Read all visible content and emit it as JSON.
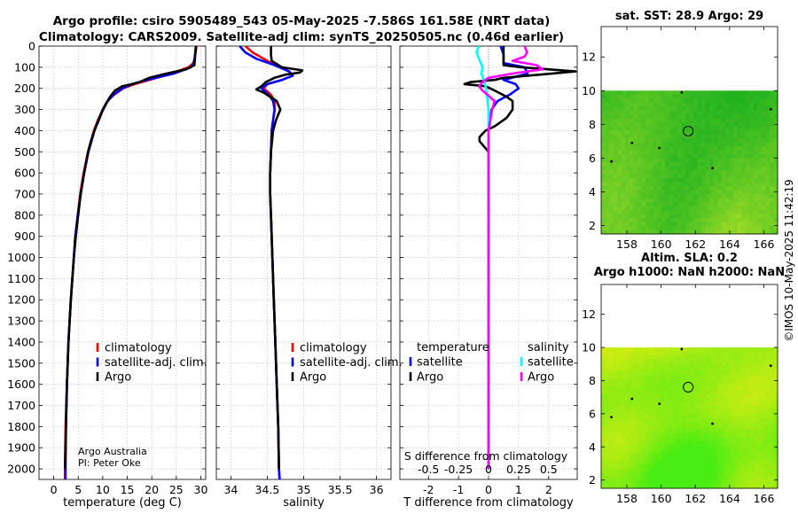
{
  "title": {
    "line1": "Argo profile: csiro 5905489_543 05-May-2025 -7.586S 161.58E (NRT data)",
    "line2": "Climatology: CARS2009. Satellite-adj clim: synTS_20250505.nc (0.46d earlier)"
  },
  "colors": {
    "climatology": "#ff0000",
    "satellite": "#0000ff",
    "argo": "#000000",
    "sal_sat": "#00ffff",
    "sal_argo": "#ff00ff",
    "grid": "#bbbbbb",
    "zero_line": "#888888"
  },
  "depth_axis": {
    "min": 0,
    "max": 2050,
    "ticks": [
      0,
      100,
      200,
      300,
      400,
      500,
      600,
      700,
      800,
      900,
      1000,
      1100,
      1200,
      1300,
      1400,
      1500,
      1600,
      1700,
      1800,
      1900,
      2000
    ]
  },
  "chart_data": [
    {
      "type": "line",
      "name": "temperature profile",
      "xlabel": "temperature (deg C)",
      "xlim": [
        -3,
        31
      ],
      "ylim": [
        2050,
        0
      ],
      "xticks": [
        0,
        5,
        10,
        15,
        20,
        25,
        30
      ],
      "legend": [
        "climatology",
        "satellite-adj. clim.",
        "Argo"
      ],
      "legend_position": "bottom-right",
      "annotation": [
        "Argo Australia",
        "PI: Peter Oke"
      ],
      "series": [
        {
          "name": "climatology",
          "color_key": "climatology",
          "depth": [
            0,
            20,
            50,
            80,
            100,
            130,
            160,
            180,
            200,
            230,
            260,
            300,
            350,
            400,
            500,
            600,
            700,
            800,
            900,
            1000,
            1200,
            1400,
            1600,
            1800,
            2000,
            2050
          ],
          "values": [
            29.1,
            29.0,
            28.8,
            28.5,
            27.5,
            24.0,
            19.5,
            16.5,
            14.2,
            12.3,
            11.0,
            10.0,
            9.0,
            8.2,
            7.0,
            6.1,
            5.4,
            4.9,
            4.4,
            4.1,
            3.5,
            3.0,
            2.7,
            2.4,
            2.3,
            2.3
          ]
        },
        {
          "name": "satellite-adj. clim.",
          "color_key": "satellite",
          "depth": [
            0,
            20,
            50,
            80,
            100,
            130,
            160,
            180,
            200,
            230,
            260,
            300,
            350,
            400,
            500,
            600,
            700,
            800,
            900,
            1000,
            1200,
            1400,
            1600,
            1800,
            2000,
            2050
          ],
          "values": [
            29.0,
            28.9,
            28.8,
            28.6,
            28.0,
            24.5,
            19.0,
            16.0,
            14.0,
            12.2,
            11.0,
            10.1,
            9.1,
            8.3,
            7.1,
            6.2,
            5.5,
            4.9,
            4.4,
            4.1,
            3.5,
            3.0,
            2.7,
            2.5,
            2.4,
            2.4
          ]
        },
        {
          "name": "Argo",
          "color_key": "argo",
          "depth": [
            0,
            10,
            30,
            60,
            90,
            110,
            130,
            150,
            170,
            180,
            190,
            210,
            240,
            270,
            300,
            350,
            400,
            450,
            500,
            600,
            700,
            800,
            900,
            1000,
            1200,
            1400,
            1600,
            1800,
            2000
          ],
          "values": [
            29.0,
            29.0,
            28.9,
            28.8,
            28.7,
            27.0,
            23.0,
            19.5,
            17.5,
            16.0,
            14.0,
            12.5,
            11.5,
            10.7,
            10.0,
            9.2,
            8.3,
            7.6,
            7.0,
            6.2,
            5.5,
            5.0,
            4.5,
            4.1,
            3.5,
            3.0,
            2.7,
            2.5,
            2.3
          ]
        }
      ]
    },
    {
      "type": "line",
      "name": "salinity profile",
      "xlabel": "salinity",
      "xlim": [
        33.8,
        36.2
      ],
      "ylim": [
        2050,
        0
      ],
      "xticks": [
        34,
        34.5,
        35,
        35.5,
        36
      ],
      "xticklabels": [
        "34",
        "34.5",
        "35",
        "35.5",
        "36"
      ],
      "legend": [
        "climatology",
        "satellite-adj. clim.",
        "Argo"
      ],
      "legend_position": "bottom-right",
      "series": [
        {
          "name": "climatology",
          "color_key": "climatology",
          "depth": [
            0,
            30,
            60,
            90,
            120,
            140,
            160,
            180,
            200,
            230,
            260,
            300,
            350,
            400,
            500,
            600,
            700,
            800,
            1000,
            1200,
            1400,
            1600,
            1800,
            2000,
            2050
          ],
          "values": [
            34.2,
            34.3,
            34.45,
            34.6,
            34.8,
            34.85,
            34.7,
            34.5,
            34.45,
            34.55,
            34.6,
            34.6,
            34.58,
            34.56,
            34.55,
            34.54,
            34.54,
            34.55,
            34.57,
            34.59,
            34.61,
            34.63,
            34.65,
            34.66,
            34.67
          ]
        },
        {
          "name": "satellite-adj. clim.",
          "color_key": "satellite",
          "depth": [
            0,
            30,
            60,
            90,
            120,
            140,
            160,
            180,
            200,
            230,
            260,
            300,
            350,
            400,
            500,
            600,
            700,
            800,
            1000,
            1200,
            1400,
            1600,
            1800,
            2000,
            2050
          ],
          "values": [
            34.12,
            34.2,
            34.35,
            34.6,
            34.8,
            34.85,
            34.7,
            34.5,
            34.42,
            34.52,
            34.58,
            34.6,
            34.58,
            34.56,
            34.55,
            34.54,
            34.54,
            34.55,
            34.57,
            34.59,
            34.61,
            34.63,
            34.65,
            34.66,
            34.67
          ]
        },
        {
          "name": "Argo",
          "color_key": "argo",
          "depth": [
            0,
            40,
            70,
            100,
            115,
            125,
            135,
            150,
            170,
            190,
            205,
            220,
            260,
            300,
            350,
            400,
            500,
            600,
            700,
            800,
            1000,
            1200,
            1400,
            1600,
            1800,
            2000
          ],
          "values": [
            34.55,
            34.55,
            34.56,
            34.7,
            34.98,
            34.95,
            34.75,
            34.6,
            34.48,
            34.42,
            34.35,
            34.45,
            34.63,
            34.68,
            34.62,
            34.58,
            34.55,
            34.54,
            34.54,
            34.55,
            34.57,
            34.59,
            34.61,
            34.63,
            34.65,
            34.66
          ]
        }
      ]
    },
    {
      "type": "line",
      "name": "difference from climatology",
      "xlabel": "T difference from climatology",
      "xlim": [
        -2.95,
        2.95
      ],
      "ylim": [
        2050,
        0
      ],
      "xticks": [
        -2,
        -1,
        0,
        1,
        2
      ],
      "salinity_axis_label": "S difference from climatology",
      "salinity_ticklabels": [
        "-0.5",
        "-0.25",
        "0",
        "0.25",
        "0.5"
      ],
      "salinity_scale": 4,
      "legend_temperature": {
        "heading": "temperature",
        "items": [
          "satellite",
          "Argo"
        ]
      },
      "legend_salinity": {
        "heading": "salinity",
        "items": [
          "satellite",
          "Argo"
        ]
      },
      "series": [
        {
          "name": "T satellite",
          "color_key": "satellite",
          "depth": [
            0,
            40,
            80,
            100,
            130,
            160,
            180,
            200,
            230,
            260,
            300,
            400,
            500,
            600,
            800,
            1000,
            1500,
            2000
          ],
          "values": [
            0.4,
            0.5,
            0.5,
            1.2,
            1.3,
            0.5,
            0.9,
            1.0,
            0.7,
            0.3,
            0.1,
            0.0,
            0.0,
            0.0,
            0.0,
            0.0,
            0.0,
            0.0
          ]
        },
        {
          "name": "T Argo",
          "color_key": "argo",
          "depth": [
            0,
            50,
            90,
            100,
            120,
            150,
            160,
            170,
            180,
            190,
            210,
            240,
            260,
            300,
            340,
            380,
            400,
            430,
            450,
            500,
            600,
            700,
            800,
            1000,
            1500,
            2000
          ],
          "values": [
            0.5,
            0.5,
            0.5,
            1.1,
            2.9,
            0.5,
            0.2,
            -0.6,
            -0.8,
            -0.1,
            0.2,
            0.6,
            0.8,
            0.8,
            0.6,
            0.2,
            -0.1,
            -0.3,
            -0.3,
            0.0,
            0.0,
            0.0,
            0.0,
            0.0,
            0.0,
            0.0
          ]
        },
        {
          "name": "S satellite",
          "color_key": "sal_sat",
          "depth": [
            0,
            30,
            60,
            100,
            130,
            160,
            200,
            250,
            300,
            400,
            500,
            600,
            800,
            1000,
            1200,
            1500,
            2000
          ],
          "values": [
            -0.08,
            -0.1,
            -0.08,
            -0.05,
            -0.06,
            -0.04,
            -0.02,
            -0.01,
            0.0,
            0.0,
            0.0,
            0.0,
            0.0,
            0.0,
            0.0,
            0.0,
            0.0
          ]
        },
        {
          "name": "S Argo",
          "color_key": "sal_argo",
          "depth": [
            0,
            30,
            50,
            70,
            90,
            110,
            130,
            150,
            170,
            190,
            210,
            260,
            300,
            400,
            500,
            600,
            800,
            1000,
            1200,
            1500,
            2000
          ],
          "values": [
            0.3,
            0.32,
            0.3,
            0.2,
            0.4,
            0.45,
            0.2,
            0.0,
            -0.05,
            -0.08,
            -0.05,
            0.05,
            0.03,
            0.0,
            0.0,
            0.0,
            0.0,
            0.0,
            0.0,
            0.0,
            0.0
          ]
        }
      ]
    }
  ],
  "maps": [
    {
      "title_lines": [
        "sat. SST: 28.9 Argo: 29"
      ],
      "x_ticks": [
        158,
        160,
        162,
        164,
        166
      ],
      "y_ticks": [
        2,
        4,
        6,
        8,
        10,
        12
      ],
      "xlim": [
        156.5,
        166.8
      ],
      "ylim": [
        1.5,
        13.8
      ],
      "data_top_lat": 10,
      "float_position": {
        "lon": 161.58,
        "lat": 7.6
      },
      "palette": "green"
    },
    {
      "title_lines": [
        "Altim. SLA: 0.2",
        "Argo h1000: NaN h2000: NaN"
      ],
      "x_ticks": [
        158,
        160,
        162,
        164,
        166
      ],
      "y_ticks": [
        2,
        4,
        6,
        8,
        10,
        12
      ],
      "xlim": [
        156.5,
        166.8
      ],
      "ylim": [
        1.5,
        13.8
      ],
      "data_top_lat": 10,
      "float_position": {
        "lon": 161.58,
        "lat": 7.6
      },
      "palette": "yellow"
    }
  ],
  "side_label": "©IMOS 10-May-2025 11:42:19"
}
